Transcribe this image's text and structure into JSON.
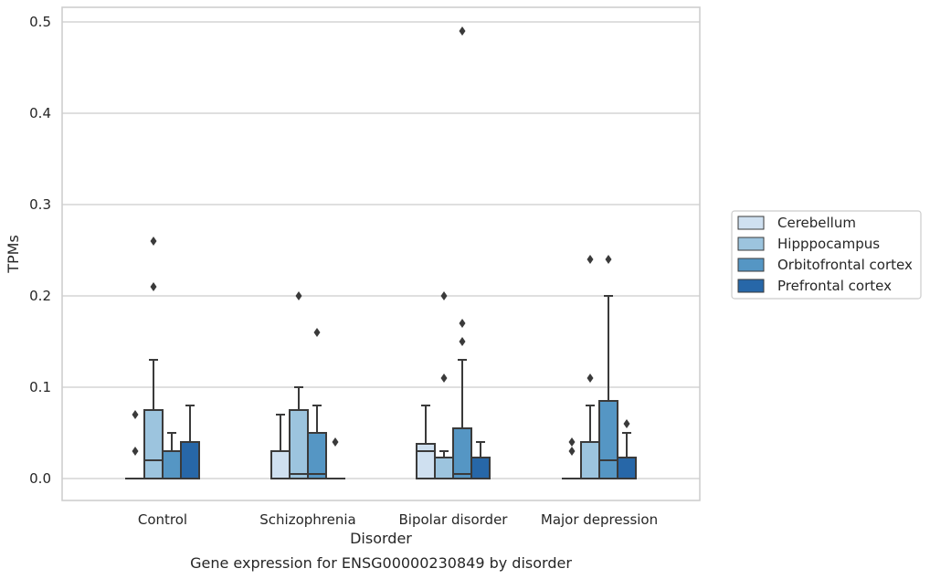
{
  "chart_data": {
    "type": "box",
    "title": "Gene expression for ENSG00000230849 by disorder",
    "xlabel": "Disorder",
    "ylabel": "TPMs",
    "ylim": [
      -0.024,
      0.515
    ],
    "yticks": [
      0.0,
      0.1,
      0.2,
      0.3,
      0.4,
      0.5
    ],
    "ytick_labels": [
      "0.0",
      "0.1",
      "0.2",
      "0.3",
      "0.4",
      "0.5"
    ],
    "categories": [
      "Control",
      "Schizophrenia",
      "Bipolar disorder",
      "Major depression"
    ],
    "grid": "horizontal",
    "legend_position": "right",
    "series": [
      {
        "name": "Cerebellum",
        "color": "#cfe0f0",
        "boxes": [
          {
            "whislo": 0.0,
            "q1": 0.0,
            "med": 0.0,
            "q3": 0.0,
            "whishi": 0.0,
            "fliers": [
              0.07,
              0.03
            ]
          },
          {
            "whislo": 0.0,
            "q1": 0.0,
            "med": 0.0,
            "q3": 0.03,
            "whishi": 0.07,
            "fliers": []
          },
          {
            "whislo": 0.0,
            "q1": 0.0,
            "med": 0.03,
            "q3": 0.038,
            "whishi": 0.08,
            "fliers": []
          },
          {
            "whislo": 0.0,
            "q1": 0.0,
            "med": 0.0,
            "q3": 0.0,
            "whishi": 0.0,
            "fliers": [
              0.04,
              0.03
            ]
          }
        ]
      },
      {
        "name": "Hipppocampus",
        "color": "#9cc4de",
        "boxes": [
          {
            "whislo": 0.0,
            "q1": 0.0,
            "med": 0.02,
            "q3": 0.075,
            "whishi": 0.13,
            "fliers": [
              0.26,
              0.21
            ]
          },
          {
            "whislo": 0.0,
            "q1": 0.0,
            "med": 0.005,
            "q3": 0.075,
            "whishi": 0.1,
            "fliers": [
              0.2
            ]
          },
          {
            "whislo": 0.0,
            "q1": 0.0,
            "med": 0.023,
            "q3": 0.023,
            "whishi": 0.03,
            "fliers": [
              0.2,
              0.11
            ]
          },
          {
            "whislo": 0.0,
            "q1": 0.0,
            "med": 0.04,
            "q3": 0.04,
            "whishi": 0.08,
            "fliers": [
              0.24,
              0.11
            ]
          }
        ]
      },
      {
        "name": "Orbitofrontal cortex",
        "color": "#5596c4",
        "boxes": [
          {
            "whislo": 0.0,
            "q1": 0.0,
            "med": 0.03,
            "q3": 0.03,
            "whishi": 0.05,
            "fliers": []
          },
          {
            "whislo": 0.0,
            "q1": 0.0,
            "med": 0.005,
            "q3": 0.05,
            "whishi": 0.08,
            "fliers": [
              0.16
            ]
          },
          {
            "whislo": 0.0,
            "q1": 0.0,
            "med": 0.005,
            "q3": 0.055,
            "whishi": 0.13,
            "fliers": [
              0.49,
              0.17,
              0.15
            ]
          },
          {
            "whislo": 0.0,
            "q1": 0.0,
            "med": 0.02,
            "q3": 0.085,
            "whishi": 0.2,
            "fliers": [
              0.24
            ]
          }
        ]
      },
      {
        "name": "Prefrontal cortex",
        "color": "#2767a8",
        "boxes": [
          {
            "whislo": 0.0,
            "q1": 0.0,
            "med": 0.04,
            "q3": 0.04,
            "whishi": 0.08,
            "fliers": []
          },
          {
            "whislo": 0.0,
            "q1": 0.0,
            "med": 0.0,
            "q3": 0.0,
            "whishi": 0.0,
            "fliers": [
              0.04
            ]
          },
          {
            "whislo": 0.0,
            "q1": 0.0,
            "med": 0.023,
            "q3": 0.023,
            "whishi": 0.04,
            "fliers": []
          },
          {
            "whislo": 0.0,
            "q1": 0.0,
            "med": 0.023,
            "q3": 0.023,
            "whishi": 0.05,
            "fliers": [
              0.06
            ]
          }
        ]
      }
    ]
  }
}
